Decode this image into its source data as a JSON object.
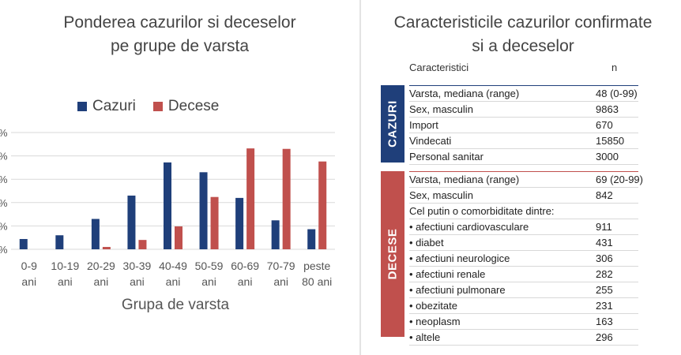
{
  "chart_data": {
    "type": "bar",
    "title_line1": "Ponderea cazurilor si deceselor",
    "title_line2": "pe grupe de varsta",
    "xlabel": "Grupa de varsta",
    "ylabel": "",
    "ylim": [
      0,
      25
    ],
    "categories": [
      {
        "line1": "0-9",
        "line2": "ani"
      },
      {
        "line1": "10-19",
        "line2": "ani"
      },
      {
        "line1": "20-29",
        "line2": "ani"
      },
      {
        "line1": "30-39",
        "line2": "ani"
      },
      {
        "line1": "40-49",
        "line2": "ani"
      },
      {
        "line1": "50-59",
        "line2": "ani"
      },
      {
        "line1": "60-69",
        "line2": "ani"
      },
      {
        "line1": "70-79",
        "line2": "ani"
      },
      {
        "line1": "peste",
        "line2": "80 ani"
      }
    ],
    "series": [
      {
        "name": "Cazuri",
        "color": "#1f3f7a",
        "values": [
          2.2,
          3.0,
          6.5,
          11.5,
          18.6,
          16.5,
          11.0,
          6.2,
          4.3
        ]
      },
      {
        "name": "Decese",
        "color": "#c0504d",
        "values": [
          0,
          0,
          0.5,
          2.0,
          4.9,
          11.2,
          21.6,
          21.5,
          18.8
        ]
      }
    ]
  },
  "table": {
    "title_line1": "Caracteristicile cazurilor confirmate",
    "title_line2": "si a deceselor",
    "col_label": "Caracteristici",
    "col_n": "n",
    "cazuri_label": "CAZURI",
    "decese_label": "DECESE",
    "cazuri_rows": [
      {
        "label": "Varsta, mediana (range)",
        "value": "48 (0-99)"
      },
      {
        "label": "Sex, masculin",
        "value": "9863"
      },
      {
        "label": "Import",
        "value": "670"
      },
      {
        "label": "Vindecati",
        "value": "15850"
      },
      {
        "label": "Personal sanitar",
        "value": "3000"
      }
    ],
    "decese_rows": [
      {
        "label": "Varsta, mediana (range)",
        "value": "69 (20-99)"
      },
      {
        "label": "Sex, masculin",
        "value": "842"
      },
      {
        "label": "Cel putin o comorbiditate dintre:",
        "value": ""
      },
      {
        "label": "• afectiuni cardiovasculare",
        "value": "911"
      },
      {
        "label": "• diabet",
        "value": "431"
      },
      {
        "label": "• afectiuni neurologice",
        "value": "306"
      },
      {
        "label": "• afectiuni renale",
        "value": "282"
      },
      {
        "label": "• afectiuni pulmonare",
        "value": "255"
      },
      {
        "label": "• obezitate",
        "value": "231"
      },
      {
        "label": "• neoplasm",
        "value": "163"
      },
      {
        "label": "• altele",
        "value": "296"
      }
    ]
  }
}
